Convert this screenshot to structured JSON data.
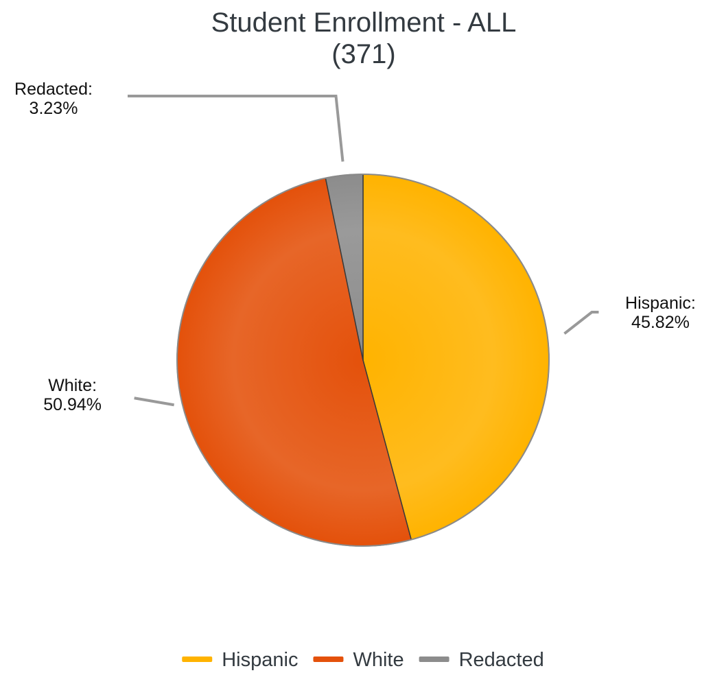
{
  "chart_data": {
    "type": "pie",
    "title": "Student Enrollment - ALL",
    "subtitle": "(371)",
    "slices": [
      {
        "name": "Hispanic",
        "value": 45.82,
        "label": "Hispanic:",
        "percent_label": "45.82%",
        "color": "#FFB300"
      },
      {
        "name": "White",
        "value": 50.94,
        "label": "White:",
        "percent_label": "50.94%",
        "color": "#E4510B"
      },
      {
        "name": "Redacted",
        "value": 3.23,
        "label": "Redacted:",
        "percent_label": "3.23%",
        "color": "#8C8C8C"
      }
    ],
    "legend": {
      "position": "bottom",
      "items": [
        "Hispanic",
        "White",
        "Redacted"
      ]
    }
  }
}
